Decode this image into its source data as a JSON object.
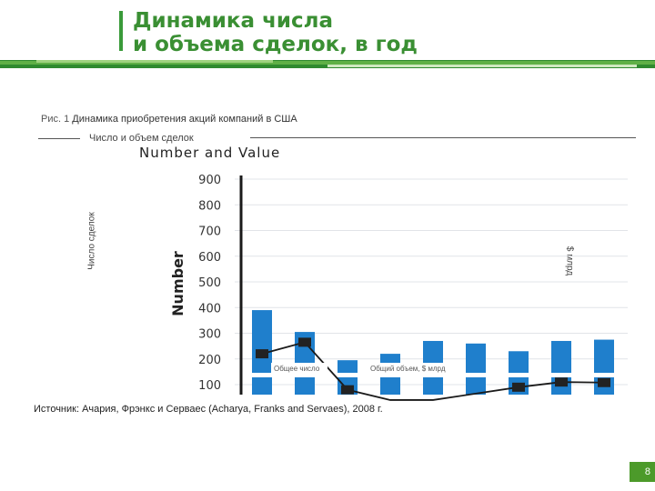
{
  "slide": {
    "title_line1": "Динамика числа",
    "title_line2": "и объема сделок, в год",
    "page_number": "8",
    "accent_color": "#3a9b3a",
    "band_colors": [
      "#2f8a2f",
      "#5fb046",
      "#9fd27f",
      "#cfe8c0"
    ]
  },
  "figure": {
    "caption_number": "Рис. 1",
    "caption_text": "Динамика приобретения акций компаний в США",
    "section_label": "Число и объем сделок",
    "source": "Источник: Ачария, Фрэнкс и Серваес (Acharya, Franks and Servaes), 2008 г."
  },
  "chart_data": {
    "type": "bar",
    "title": "Number and Value",
    "ylabel": "Number",
    "ylabel_left_ru": "Число сделок",
    "ylabel_right_ru": "$ млрд",
    "ylim": [
      70,
      920
    ],
    "yticks": [
      900,
      800,
      700,
      600,
      500,
      400,
      300,
      200,
      100
    ],
    "grid": true,
    "bar_color": "#1f7fcc",
    "line_color": "#1a1a1a",
    "series": [
      {
        "name": "Общее число",
        "kind": "bar",
        "values": [
          390,
          305,
          195,
          220,
          270,
          260,
          230,
          270,
          275
        ]
      },
      {
        "name": "Общий объем, $ млрд",
        "kind": "line",
        "values": [
          220,
          265,
          80,
          40,
          40,
          65,
          90,
          110,
          108
        ]
      }
    ],
    "legend": {
      "bar_label": "Общее число",
      "line_label": "Общий объем, $ млрд"
    }
  }
}
